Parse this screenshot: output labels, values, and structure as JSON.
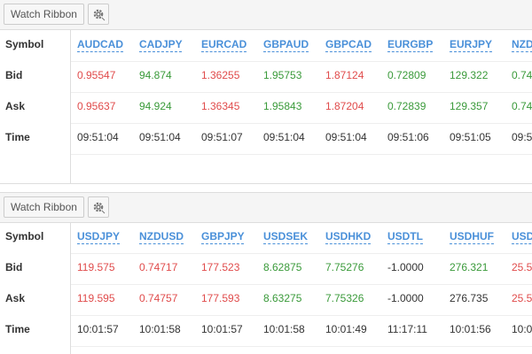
{
  "colors": {
    "up": "#3a9a3a",
    "down": "#e04b4b",
    "neutral": "#333333",
    "link": "#4a90d9"
  },
  "panels": [
    {
      "button_label": "Watch Ribbon",
      "gear_icon": "gear-icon",
      "row_labels": [
        "Symbol",
        "Bid",
        "Ask",
        "Time"
      ],
      "quotes": [
        {
          "symbol": "AUDCAD",
          "bid": "0.95547",
          "ask": "0.95637",
          "time": "09:51:04",
          "bid_dir": "down",
          "ask_dir": "down"
        },
        {
          "symbol": "CADJPY",
          "bid": "94.874",
          "ask": "94.924",
          "time": "09:51:04",
          "bid_dir": "up",
          "ask_dir": "up"
        },
        {
          "symbol": "EURCAD",
          "bid": "1.36255",
          "ask": "1.36345",
          "time": "09:51:07",
          "bid_dir": "down",
          "ask_dir": "down"
        },
        {
          "symbol": "GBPAUD",
          "bid": "1.95753",
          "ask": "1.95843",
          "time": "09:51:04",
          "bid_dir": "up",
          "ask_dir": "up"
        },
        {
          "symbol": "GBPCAD",
          "bid": "1.87124",
          "ask": "1.87204",
          "time": "09:51:04",
          "bid_dir": "down",
          "ask_dir": "down"
        },
        {
          "symbol": "EURGBP",
          "bid": "0.72809",
          "ask": "0.72839",
          "time": "09:51:06",
          "bid_dir": "up",
          "ask_dir": "up"
        },
        {
          "symbol": "EURJPY",
          "bid": "129.322",
          "ask": "129.357",
          "time": "09:51:05",
          "bid_dir": "up",
          "ask_dir": "up"
        },
        {
          "symbol": "NZD",
          "bid": "0.74",
          "ask": "0.74",
          "time": "09:5",
          "bid_dir": "up",
          "ask_dir": "up"
        }
      ]
    },
    {
      "button_label": "Watch Ribbon",
      "gear_icon": "gear-icon",
      "row_labels": [
        "Symbol",
        "Bid",
        "Ask",
        "Time"
      ],
      "quotes": [
        {
          "symbol": "USDJPY",
          "bid": "119.575",
          "ask": "119.595",
          "time": "10:01:57",
          "bid_dir": "down",
          "ask_dir": "down"
        },
        {
          "symbol": "NZDUSD",
          "bid": "0.74717",
          "ask": "0.74757",
          "time": "10:01:58",
          "bid_dir": "down",
          "ask_dir": "down"
        },
        {
          "symbol": "GBPJPY",
          "bid": "177.523",
          "ask": "177.593",
          "time": "10:01:57",
          "bid_dir": "down",
          "ask_dir": "down"
        },
        {
          "symbol": "USDSEK",
          "bid": "8.62875",
          "ask": "8.63275",
          "time": "10:01:58",
          "bid_dir": "up",
          "ask_dir": "up"
        },
        {
          "symbol": "USDHKD",
          "bid": "7.75276",
          "ask": "7.75326",
          "time": "10:01:49",
          "bid_dir": "up",
          "ask_dir": "up"
        },
        {
          "symbol": "USDTL",
          "bid": "-1.0000",
          "ask": "-1.0000",
          "time": "11:17:11",
          "bid_dir": "neutral",
          "ask_dir": "neutral"
        },
        {
          "symbol": "USDHUF",
          "bid": "276.321",
          "ask": "276.735",
          "time": "10:01:56",
          "bid_dir": "up",
          "ask_dir": "neutral"
        },
        {
          "symbol": "USDSGD",
          "bid": "25.5",
          "ask": "25.5",
          "time": "10:0",
          "bid_dir": "down",
          "ask_dir": "down"
        }
      ]
    }
  ]
}
